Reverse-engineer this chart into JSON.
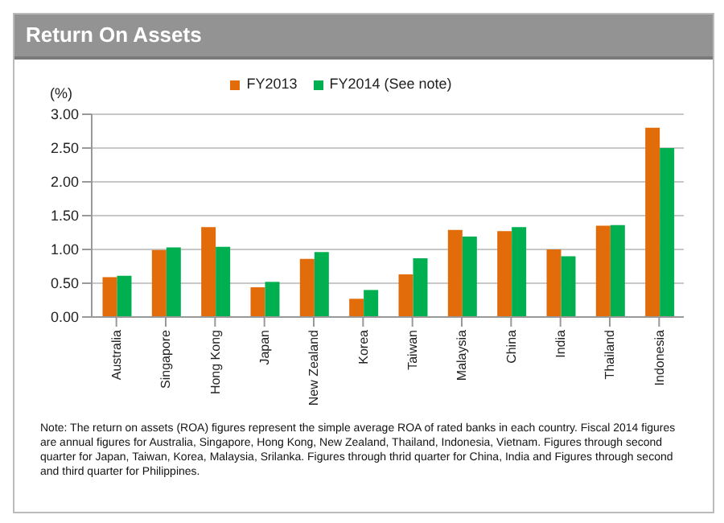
{
  "chart_data": {
    "type": "bar",
    "title": "Return On Assets",
    "ylabel": "(%)",
    "categories": [
      "Australia",
      "Singapore",
      "Hong Kong",
      "Japan",
      "New Zealand",
      "Korea",
      "Taiwan",
      "Malaysia",
      "China",
      "India",
      "Thailand",
      "Indonesia"
    ],
    "series": [
      {
        "name": "FY2013",
        "color": "#e36c0a",
        "values": [
          0.59,
          0.99,
          1.33,
          0.44,
          0.86,
          0.27,
          0.63,
          1.29,
          1.27,
          1.0,
          1.35,
          2.8
        ]
      },
      {
        "name": "FY2014 (See note)",
        "color": "#00b050",
        "values": [
          0.61,
          1.03,
          1.04,
          0.52,
          0.96,
          0.4,
          0.87,
          1.19,
          1.33,
          0.9,
          1.36,
          2.5
        ]
      }
    ],
    "ylim": [
      0,
      3
    ],
    "yticks": [
      {
        "value": 0,
        "label": "0.00"
      },
      {
        "value": 0.5,
        "label": "0.50"
      },
      {
        "value": 1,
        "label": "1.00"
      },
      {
        "value": 1.5,
        "label": "1.50"
      },
      {
        "value": 2,
        "label": "2.00"
      },
      {
        "value": 2.5,
        "label": "2.50"
      },
      {
        "value": 3,
        "label": "3.00"
      }
    ],
    "grid": "y",
    "legend": "top",
    "annotations": [
      "Note: The return on assets (ROA) figures represent the simple average ROA of rated banks in each country. Fiscal 2014 figures are annual figures for Australia, Singapore,  Hong Kong, New Zealand, Thailand, Indonesia, Vietnam. Figures through second quarter for Japan, Taiwan, Korea, Malaysia, Srilanka. Figures through thrid quarter for China, India and Figures through second and third quarter for Philippines."
    ]
  }
}
